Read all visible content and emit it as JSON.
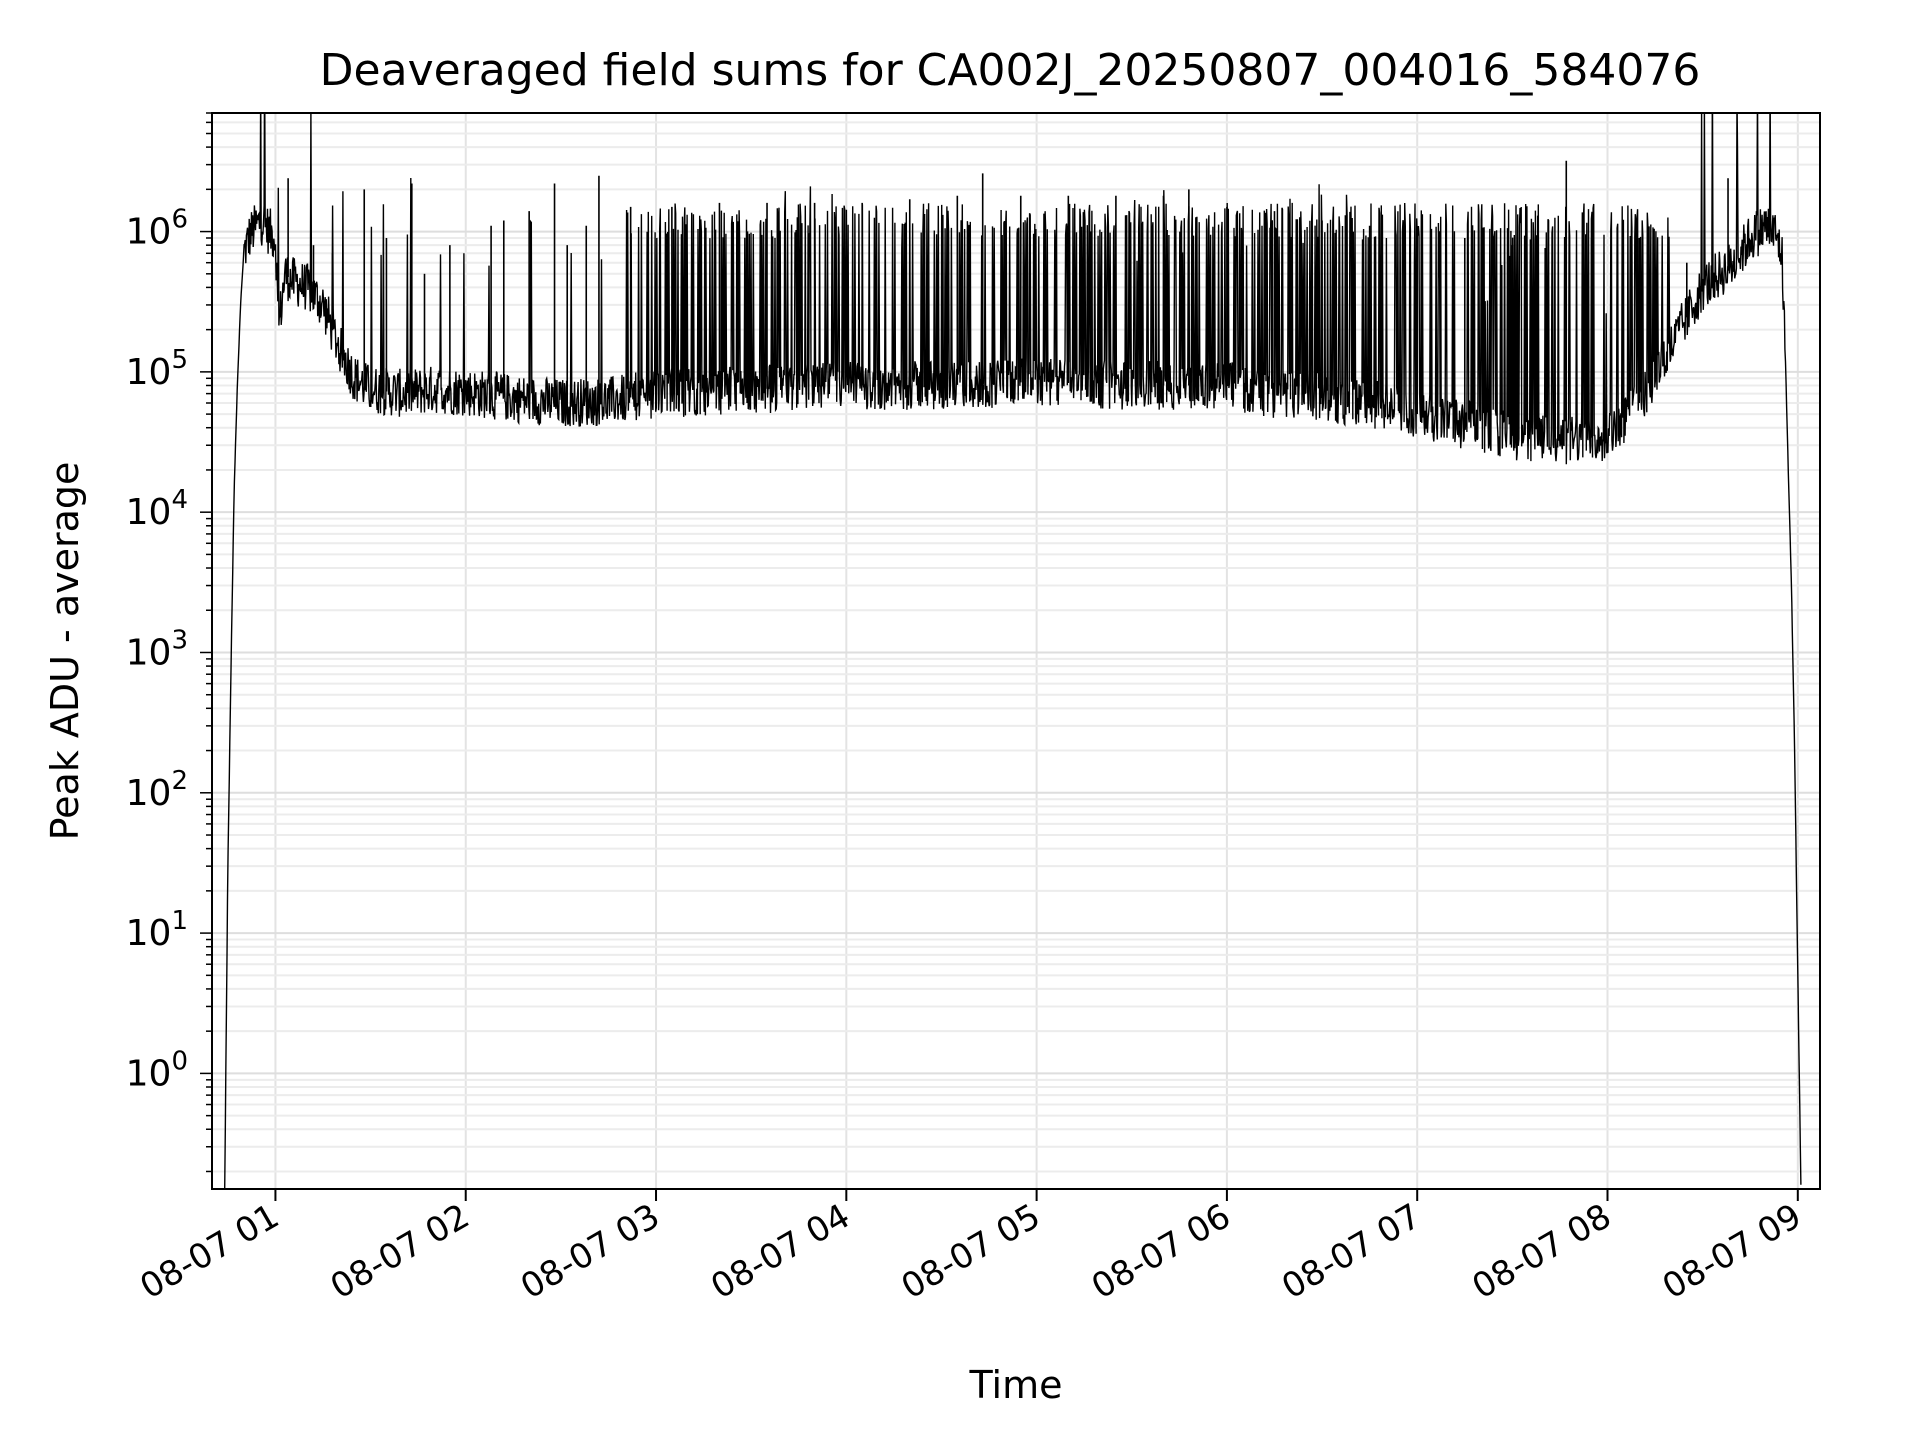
{
  "chart_data": {
    "type": "line",
    "title": "Deaveraged field sums for CA002J_20250807_004016_584076",
    "xlabel": "Time",
    "ylabel": "Peak ADU - average",
    "yscale": "log",
    "ylim": [
      0.15,
      7000000
    ],
    "xlim": [
      "2025-08-07 00:40",
      "2025-08-07 09:07"
    ],
    "grid": true,
    "legend": "none",
    "line_color": "#000000",
    "xtick_labels": [
      "08-07 01",
      "08-07 02",
      "08-07 03",
      "08-07 04",
      "08-07 05",
      "08-07 06",
      "08-07 07",
      "08-07 08",
      "08-07 09"
    ],
    "xtick_times": [
      "2025-08-07 01:00",
      "2025-08-07 02:00",
      "2025-08-07 03:00",
      "2025-08-07 04:00",
      "2025-08-07 05:00",
      "2025-08-07 06:00",
      "2025-08-07 07:00",
      "2025-08-07 08:00",
      "2025-08-07 09:00"
    ],
    "ytick_labels": [
      {
        "base": "10",
        "exp": "0",
        "value": 1
      },
      {
        "base": "10",
        "exp": "1",
        "value": 10
      },
      {
        "base": "10",
        "exp": "2",
        "value": 100
      },
      {
        "base": "10",
        "exp": "3",
        "value": 1000
      },
      {
        "base": "10",
        "exp": "4",
        "value": 10000
      },
      {
        "base": "10",
        "exp": "5",
        "value": 100000
      },
      {
        "base": "10",
        "exp": "6",
        "value": 1000000
      }
    ],
    "series": [
      {
        "x": [
          "2025-08-07 00:44",
          "2025-08-07 00:45",
          "2025-08-07 00:46",
          "2025-08-07 00:47",
          "2025-08-07 00:48",
          "2025-08-07 00:49",
          "2025-08-07 00:50",
          "2025-08-07 00:52",
          "2025-08-07 00:54",
          "2025-08-07 00:56",
          "2025-08-07 00:58",
          "2025-08-07 01:00",
          "2025-08-07 01:01",
          "2025-08-07 01:03",
          "2025-08-07 01:05",
          "2025-08-07 01:10",
          "2025-08-07 01:15",
          "2025-08-07 01:20",
          "2025-08-07 01:25",
          "2025-08-07 01:30",
          "2025-08-07 01:40",
          "2025-08-07 01:50",
          "2025-08-07 02:00",
          "2025-08-07 02:15",
          "2025-08-07 02:30",
          "2025-08-07 02:45",
          "2025-08-07 03:00",
          "2025-08-07 03:30",
          "2025-08-07 04:00",
          "2025-08-07 04:30",
          "2025-08-07 05:00",
          "2025-08-07 05:30",
          "2025-08-07 06:00",
          "2025-08-07 06:15",
          "2025-08-07 06:30",
          "2025-08-07 06:45",
          "2025-08-07 07:00",
          "2025-08-07 07:15",
          "2025-08-07 07:30",
          "2025-08-07 07:45",
          "2025-08-07 08:00",
          "2025-08-07 08:10",
          "2025-08-07 08:20",
          "2025-08-07 08:30",
          "2025-08-07 08:40",
          "2025-08-07 08:45",
          "2025-08-07 08:50",
          "2025-08-07 08:53",
          "2025-08-07 08:55",
          "2025-08-07 08:56",
          "2025-08-07 08:57",
          "2025-08-07 08:58",
          "2025-08-07 08:59",
          "2025-08-07 09:00",
          "2025-08-07 09:01"
        ],
        "y": [
          0.15,
          30,
          800,
          15000,
          80000,
          300000,
          700000,
          950000,
          1100000,
          1200000,
          1000000,
          900000,
          200000,
          500000,
          450000,
          400000,
          300000,
          150000,
          90000,
          75000,
          70000,
          75000,
          72000,
          65000,
          60000,
          62000,
          70000,
          75000,
          80000,
          80000,
          85000,
          80000,
          80000,
          70000,
          65000,
          60000,
          50000,
          42000,
          35000,
          32000,
          35000,
          60000,
          150000,
          400000,
          600000,
          900000,
          1100000,
          950000,
          700000,
          150000,
          20000,
          3000,
          200,
          5,
          0.15
        ],
        "spikes": [
          {
            "x": "2025-08-07 01:04",
            "y": 2400000
          },
          {
            "x": "2025-08-07 01:12",
            "y": 800000
          },
          {
            "x": "2025-08-07 01:18",
            "y": 700000
          },
          {
            "x": "2025-08-07 01:28",
            "y": 2000000
          },
          {
            "x": "2025-08-07 01:35",
            "y": 900000
          },
          {
            "x": "2025-08-07 01:43",
            "y": 2200000
          },
          {
            "x": "2025-08-07 01:47",
            "y": 500000
          },
          {
            "x": "2025-08-07 01:55",
            "y": 800000
          },
          {
            "x": "2025-08-07 02:08",
            "y": 1100000
          },
          {
            "x": "2025-08-07 02:12",
            "y": 1200000
          },
          {
            "x": "2025-08-07 02:20",
            "y": 1400000
          },
          {
            "x": "2025-08-07 02:28",
            "y": 2200000
          },
          {
            "x": "2025-08-07 02:32",
            "y": 800000
          },
          {
            "x": "2025-08-07 02:38",
            "y": 1100000
          },
          {
            "x": "2025-08-07 02:42",
            "y": 2500000
          },
          {
            "x": "2025-08-07 02:52",
            "y": 1500000
          },
          {
            "x": "2025-08-07 03:05",
            "y": 1500000
          },
          {
            "x": "2025-08-07 03:20",
            "y": 1600000
          },
          {
            "x": "2025-08-07 03:35",
            "y": 1600000
          },
          {
            "x": "2025-08-07 03:50",
            "y": 1600000
          },
          {
            "x": "2025-08-07 04:05",
            "y": 1600000
          },
          {
            "x": "2025-08-07 04:20",
            "y": 1700000
          },
          {
            "x": "2025-08-07 04:35",
            "y": 1800000
          },
          {
            "x": "2025-08-07 04:43",
            "y": 2600000
          },
          {
            "x": "2025-08-07 04:55",
            "y": 1800000
          },
          {
            "x": "2025-08-07 05:10",
            "y": 1800000
          },
          {
            "x": "2025-08-07 05:25",
            "y": 1800000
          },
          {
            "x": "2025-08-07 05:40",
            "y": 1800000
          },
          {
            "x": "2025-08-07 05:48",
            "y": 2000000
          },
          {
            "x": "2025-08-07 06:00",
            "y": 1500000
          },
          {
            "x": "2025-08-07 06:15",
            "y": 1400000
          },
          {
            "x": "2025-08-07 06:30",
            "y": 1200000
          },
          {
            "x": "2025-08-07 06:45",
            "y": 1100000
          },
          {
            "x": "2025-08-07 07:00",
            "y": 1000000
          },
          {
            "x": "2025-08-07 07:15",
            "y": 900000
          },
          {
            "x": "2025-08-07 07:30",
            "y": 800000
          },
          {
            "x": "2025-08-07 07:38",
            "y": 1300000
          },
          {
            "x": "2025-08-07 07:47",
            "y": 3200000
          },
          {
            "x": "2025-08-07 07:55",
            "y": 900000
          },
          {
            "x": "2025-08-07 08:10",
            "y": 900000
          },
          {
            "x": "2025-08-07 08:25",
            "y": 600000
          },
          {
            "x": "2025-08-07 08:38",
            "y": 2400000
          }
        ]
      }
    ]
  }
}
